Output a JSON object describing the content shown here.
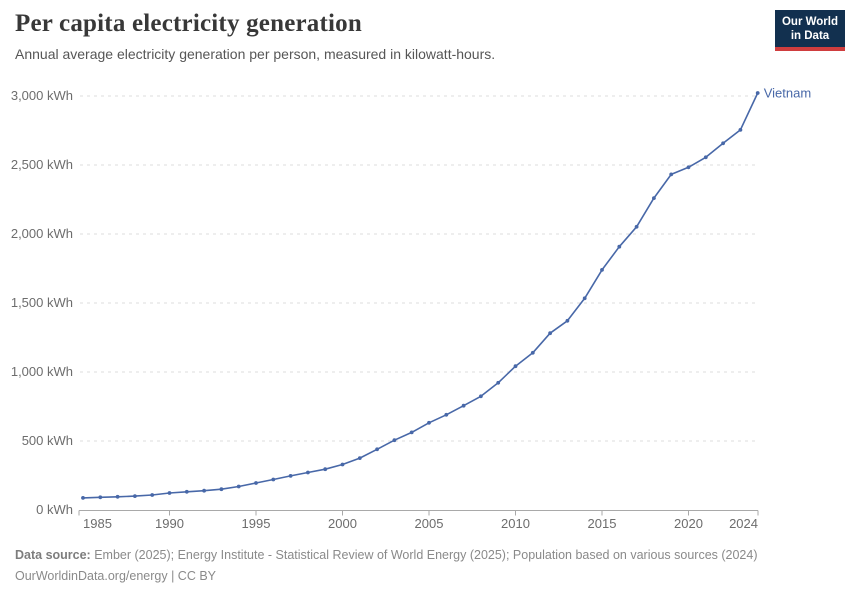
{
  "header": {
    "title": "Per capita electricity generation",
    "subtitle": "Annual average electricity generation per person, measured in kilowatt-hours."
  },
  "logo": {
    "line1": "Our World",
    "line2": "in Data",
    "bg_color": "#12304f",
    "accent_color": "#cf3d3e"
  },
  "chart_data": {
    "type": "line",
    "title": "Per capita electricity generation",
    "subtitle": "Annual average electricity generation per person, measured in kilowatt-hours.",
    "unit": "kWh",
    "xlabel": "",
    "ylabel": "",
    "ylim": [
      0,
      3000
    ],
    "grid": "horizontal-dashed",
    "legend_position": "line-end-label",
    "x": [
      1985,
      1986,
      1987,
      1988,
      1989,
      1990,
      1991,
      1992,
      1993,
      1994,
      1995,
      1996,
      1997,
      1998,
      1999,
      2000,
      2001,
      2002,
      2003,
      2004,
      2005,
      2006,
      2007,
      2008,
      2009,
      2010,
      2011,
      2012,
      2013,
      2014,
      2015,
      2016,
      2017,
      2018,
      2019,
      2020,
      2021,
      2022,
      2023,
      2024
    ],
    "series": [
      {
        "name": "Vietnam",
        "color": "#4868a8",
        "values": [
          88,
          92,
          96,
          101,
          109,
          123,
          132,
          140,
          151,
          170,
          196,
          221,
          247,
          272,
          296,
          330,
          376,
          440,
          506,
          562,
          632,
          690,
          756,
          824,
          922,
          1042,
          1139,
          1281,
          1371,
          1534,
          1740,
          1908,
          2052,
          2260,
          2432,
          2483,
          2556,
          2657,
          2754,
          3022
        ]
      }
    ],
    "yticks": [
      {
        "v": 0,
        "label": "0 kWh"
      },
      {
        "v": 500,
        "label": "500 kWh"
      },
      {
        "v": 1000,
        "label": "1,000 kWh"
      },
      {
        "v": 1500,
        "label": "1,500 kWh"
      },
      {
        "v": 2000,
        "label": "2,000 kWh"
      },
      {
        "v": 2500,
        "label": "2,500 kWh"
      },
      {
        "v": 3000,
        "label": "3,000 kWh"
      }
    ],
    "xticks": [
      {
        "v": 1985,
        "label": "1985",
        "anchor": "start"
      },
      {
        "v": 1990,
        "label": "1990",
        "anchor": "middle"
      },
      {
        "v": 1995,
        "label": "1995",
        "anchor": "middle"
      },
      {
        "v": 2000,
        "label": "2000",
        "anchor": "middle"
      },
      {
        "v": 2005,
        "label": "2005",
        "anchor": "middle"
      },
      {
        "v": 2010,
        "label": "2010",
        "anchor": "middle"
      },
      {
        "v": 2015,
        "label": "2015",
        "anchor": "middle"
      },
      {
        "v": 2020,
        "label": "2020",
        "anchor": "middle"
      },
      {
        "v": 2024,
        "label": "2024",
        "anchor": "end"
      }
    ],
    "end_label": "Vietnam"
  },
  "footer": {
    "source_prefix": "Data source:",
    "source_rest": " Ember (2025); Energy Institute - Statistical Review of World Energy (2025); Population based on various sources (2024)",
    "license_line": "OurWorldinData.org/energy | CC BY"
  }
}
